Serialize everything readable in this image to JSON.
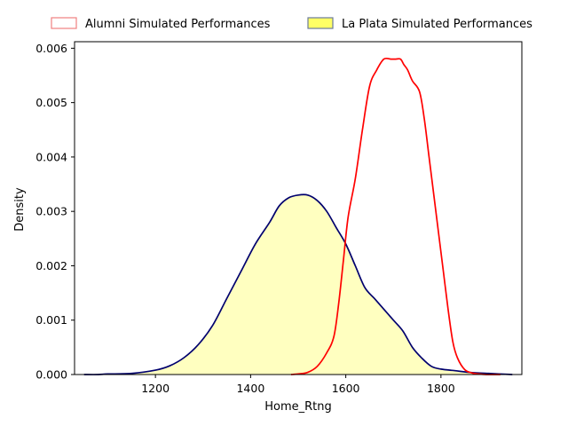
{
  "chart_data": {
    "type": "area",
    "xlabel": "Home_Rtng",
    "ylabel": "Density",
    "xlim": [
      1030,
      1970
    ],
    "ylim": [
      0,
      0.00612
    ],
    "x_ticks": [
      1200,
      1400,
      1600,
      1800
    ],
    "x_tick_labels": [
      "1200",
      "1400",
      "1600",
      "1800"
    ],
    "y_ticks": [
      0,
      0.001,
      0.002,
      0.003,
      0.004,
      0.005,
      0.006
    ],
    "y_tick_labels": [
      "0.000",
      "0.001",
      "0.002",
      "0.003",
      "0.004",
      "0.005",
      "0.006"
    ],
    "legend_position": "top, outside plot",
    "grid": false,
    "series": [
      {
        "name": "Alumni Simulated Performances",
        "line_color": "#ff0000",
        "fill_color": "#ffffff",
        "legend_edge_color": "#f08080",
        "x": [
          1485,
          1500,
          1520,
          1540,
          1560,
          1575,
          1585,
          1595,
          1605,
          1620,
          1635,
          1650,
          1665,
          1680,
          1695,
          1705,
          1715,
          1722,
          1730,
          1740,
          1755,
          1765,
          1775,
          1785,
          1795,
          1805,
          1815,
          1825,
          1835,
          1850,
          1865,
          1880,
          1895,
          1910,
          1925
        ],
        "values": [
          0.0,
          1e-05,
          4e-05,
          0.00015,
          0.0004,
          0.0007,
          0.0013,
          0.0021,
          0.0029,
          0.0036,
          0.0045,
          0.0053,
          0.0056,
          0.0058,
          0.0058,
          0.0058,
          0.0058,
          0.0057,
          0.0056,
          0.0054,
          0.0052,
          0.0047,
          0.004,
          0.0033,
          0.0026,
          0.0019,
          0.0012,
          0.0006,
          0.0003,
          9e-05,
          3e-05,
          1e-05,
          0.0,
          0.0,
          0.0
        ]
      },
      {
        "name": "La Plata Simulated Performances",
        "line_color": "#00006e",
        "fill_color": "#ffffc0",
        "legend_edge_color": "#6a7a9a",
        "legend_fill_color": "#ffff66",
        "x": [
          1050,
          1080,
          1100,
          1150,
          1200,
          1230,
          1260,
          1290,
          1320,
          1350,
          1380,
          1410,
          1440,
          1460,
          1480,
          1500,
          1520,
          1540,
          1560,
          1580,
          1600,
          1620,
          1640,
          1660,
          1680,
          1700,
          1720,
          1740,
          1760,
          1780,
          1800,
          1830,
          1860,
          1900,
          1950
        ],
        "values": [
          0.0,
          0.0,
          1e-05,
          2e-05,
          8e-05,
          0.00016,
          0.00031,
          0.00055,
          0.0009,
          0.0014,
          0.0019,
          0.0024,
          0.0028,
          0.0031,
          0.00325,
          0.0033,
          0.0033,
          0.0032,
          0.003,
          0.0027,
          0.0024,
          0.002,
          0.0016,
          0.0014,
          0.0012,
          0.001,
          0.0008,
          0.0005,
          0.0003,
          0.00015,
          0.0001,
          7e-05,
          4e-05,
          2e-05,
          0.0
        ]
      }
    ]
  }
}
